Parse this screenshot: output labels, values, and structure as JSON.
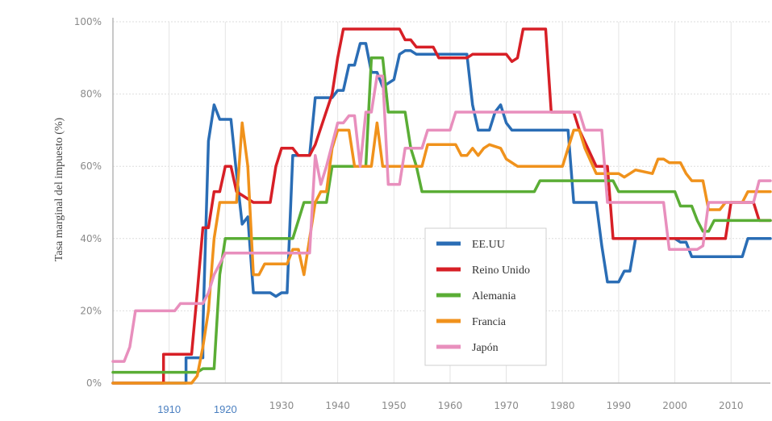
{
  "chart_data": {
    "type": "line",
    "ylabel": "Tasa marginal del impuesto (%)",
    "xlim": [
      1900,
      2017
    ],
    "ylim": [
      0,
      100
    ],
    "yticks": [
      {
        "value": 0,
        "label": "0%"
      },
      {
        "value": 20,
        "label": "20%"
      },
      {
        "value": 40,
        "label": "40%"
      },
      {
        "value": 60,
        "label": "60%"
      },
      {
        "value": 80,
        "label": "80%"
      },
      {
        "value": 100,
        "label": "100%"
      }
    ],
    "xticks": [
      {
        "value": 1910,
        "label": "1910",
        "style": "blue"
      },
      {
        "value": 1920,
        "label": "1920",
        "style": "blue"
      },
      {
        "value": 1930,
        "label": "1930",
        "style": "gray"
      },
      {
        "value": 1940,
        "label": "1940",
        "style": "gray"
      },
      {
        "value": 1950,
        "label": "1950",
        "style": "gray"
      },
      {
        "value": 1960,
        "label": "1960",
        "style": "gray"
      },
      {
        "value": 1970,
        "label": "1970",
        "style": "gray"
      },
      {
        "value": 1980,
        "label": "1980",
        "style": "gray"
      },
      {
        "value": 1990,
        "label": "1990",
        "style": "gray"
      },
      {
        "value": 2000,
        "label": "2000",
        "style": "gray"
      },
      {
        "value": 2010,
        "label": "2010",
        "style": "gray"
      }
    ],
    "grid": true,
    "legend_position": "bottom-center",
    "series": [
      {
        "name": "EE.UU",
        "color": "#2a6db5",
        "points": [
          [
            1900,
            0
          ],
          [
            1913,
            0
          ],
          [
            1913,
            7
          ],
          [
            1916,
            7
          ],
          [
            1916,
            15
          ],
          [
            1917,
            67
          ],
          [
            1918,
            77
          ],
          [
            1919,
            73
          ],
          [
            1921,
            73
          ],
          [
            1922,
            58
          ],
          [
            1923,
            44
          ],
          [
            1924,
            46
          ],
          [
            1925,
            25
          ],
          [
            1928,
            25
          ],
          [
            1929,
            24
          ],
          [
            1930,
            25
          ],
          [
            1931,
            25
          ],
          [
            1932,
            63
          ],
          [
            1935,
            63
          ],
          [
            1936,
            79
          ],
          [
            1939,
            79
          ],
          [
            1940,
            81
          ],
          [
            1941,
            81
          ],
          [
            1942,
            88
          ],
          [
            1943,
            88
          ],
          [
            1944,
            94
          ],
          [
            1945,
            94
          ],
          [
            1946,
            86
          ],
          [
            1947,
            86
          ],
          [
            1948,
            82
          ],
          [
            1950,
            84
          ],
          [
            1951,
            91
          ],
          [
            1952,
            92
          ],
          [
            1953,
            92
          ],
          [
            1954,
            91
          ],
          [
            1963,
            91
          ],
          [
            1964,
            77
          ],
          [
            1965,
            70
          ],
          [
            1967,
            70
          ],
          [
            1968,
            75
          ],
          [
            1969,
            77
          ],
          [
            1970,
            72
          ],
          [
            1971,
            70
          ],
          [
            1981,
            70
          ],
          [
            1982,
            50
          ],
          [
            1986,
            50
          ],
          [
            1987,
            38
          ],
          [
            1988,
            28
          ],
          [
            1990,
            28
          ],
          [
            1991,
            31
          ],
          [
            1992,
            31
          ],
          [
            1993,
            40
          ],
          [
            2000,
            40
          ],
          [
            2001,
            39
          ],
          [
            2002,
            39
          ],
          [
            2003,
            35
          ],
          [
            2012,
            35
          ],
          [
            2013,
            40
          ],
          [
            2017,
            40
          ]
        ]
      },
      {
        "name": "Reino Unido",
        "color": "#d71f26",
        "points": [
          [
            1900,
            0
          ],
          [
            1909,
            0
          ],
          [
            1909,
            8
          ],
          [
            1914,
            8
          ],
          [
            1915,
            25
          ],
          [
            1916,
            43
          ],
          [
            1917,
            43
          ],
          [
            1918,
            53
          ],
          [
            1919,
            53
          ],
          [
            1920,
            60
          ],
          [
            1921,
            60
          ],
          [
            1922,
            53
          ],
          [
            1925,
            50
          ],
          [
            1928,
            50
          ],
          [
            1929,
            60
          ],
          [
            1930,
            65
          ],
          [
            1932,
            65
          ],
          [
            1933,
            63
          ],
          [
            1935,
            63
          ],
          [
            1936,
            66
          ],
          [
            1939,
            80
          ],
          [
            1940,
            90
          ],
          [
            1941,
            98
          ],
          [
            1951,
            98
          ],
          [
            1952,
            95
          ],
          [
            1953,
            95
          ],
          [
            1954,
            93
          ],
          [
            1957,
            93
          ],
          [
            1958,
            90
          ],
          [
            1963,
            90
          ],
          [
            1964,
            91
          ],
          [
            1970,
            91
          ],
          [
            1971,
            89
          ],
          [
            1972,
            90
          ],
          [
            1973,
            98
          ],
          [
            1977,
            98
          ],
          [
            1978,
            75
          ],
          [
            1982,
            75
          ],
          [
            1983,
            70
          ],
          [
            1986,
            60
          ],
          [
            1988,
            60
          ],
          [
            1989,
            40
          ],
          [
            2009,
            40
          ],
          [
            2010,
            50
          ],
          [
            2014,
            50
          ],
          [
            2015,
            45
          ],
          [
            2017,
            45
          ]
        ]
      },
      {
        "name": "Alemania",
        "color": "#5aad35",
        "points": [
          [
            1900,
            3
          ],
          [
            1915,
            3
          ],
          [
            1916,
            4
          ],
          [
            1918,
            4
          ],
          [
            1919,
            30
          ],
          [
            1920,
            40
          ],
          [
            1932,
            40
          ],
          [
            1933,
            45
          ],
          [
            1934,
            50
          ],
          [
            1938,
            50
          ],
          [
            1939,
            60
          ],
          [
            1945,
            60
          ],
          [
            1946,
            90
          ],
          [
            1948,
            90
          ],
          [
            1949,
            75
          ],
          [
            1952,
            75
          ],
          [
            1953,
            65
          ],
          [
            1954,
            60
          ],
          [
            1955,
            53
          ],
          [
            1975,
            53
          ],
          [
            1976,
            56
          ],
          [
            1989,
            56
          ],
          [
            1990,
            53
          ],
          [
            2000,
            53
          ],
          [
            2001,
            49
          ],
          [
            2003,
            49
          ],
          [
            2004,
            45
          ],
          [
            2005,
            42
          ],
          [
            2006,
            42
          ],
          [
            2007,
            45
          ],
          [
            2017,
            45
          ]
        ]
      },
      {
        "name": "Francia",
        "color": "#f0921c",
        "points": [
          [
            1900,
            0
          ],
          [
            1914,
            0
          ],
          [
            1915,
            2
          ],
          [
            1916,
            10
          ],
          [
            1917,
            20
          ],
          [
            1918,
            40
          ],
          [
            1919,
            50
          ],
          [
            1922,
            50
          ],
          [
            1923,
            72
          ],
          [
            1924,
            60
          ],
          [
            1925,
            30
          ],
          [
            1926,
            30
          ],
          [
            1927,
            33
          ],
          [
            1931,
            33
          ],
          [
            1932,
            37
          ],
          [
            1933,
            37
          ],
          [
            1934,
            30
          ],
          [
            1935,
            40
          ],
          [
            1936,
            50
          ],
          [
            1937,
            53
          ],
          [
            1938,
            53
          ],
          [
            1939,
            65
          ],
          [
            1940,
            70
          ],
          [
            1942,
            70
          ],
          [
            1943,
            60
          ],
          [
            1946,
            60
          ],
          [
            1947,
            72
          ],
          [
            1948,
            60
          ],
          [
            1955,
            60
          ],
          [
            1956,
            66
          ],
          [
            1961,
            66
          ],
          [
            1962,
            63
          ],
          [
            1963,
            63
          ],
          [
            1964,
            65
          ],
          [
            1965,
            63
          ],
          [
            1966,
            65
          ],
          [
            1967,
            66
          ],
          [
            1969,
            65
          ],
          [
            1970,
            62
          ],
          [
            1972,
            60
          ],
          [
            1980,
            60
          ],
          [
            1981,
            65
          ],
          [
            1982,
            70
          ],
          [
            1983,
            70
          ],
          [
            1984,
            65
          ],
          [
            1986,
            58
          ],
          [
            1990,
            58
          ],
          [
            1991,
            57
          ],
          [
            1992,
            58
          ],
          [
            1993,
            59
          ],
          [
            1996,
            58
          ],
          [
            1997,
            62
          ],
          [
            1998,
            62
          ],
          [
            1999,
            61
          ],
          [
            2001,
            61
          ],
          [
            2002,
            58
          ],
          [
            2003,
            56
          ],
          [
            2005,
            56
          ],
          [
            2006,
            48
          ],
          [
            2008,
            48
          ],
          [
            2009,
            50
          ],
          [
            2012,
            50
          ],
          [
            2013,
            53
          ],
          [
            2017,
            53
          ]
        ]
      },
      {
        "name": "Japón",
        "color": "#e88fbd",
        "points": [
          [
            1900,
            6
          ],
          [
            1902,
            6
          ],
          [
            1903,
            10
          ],
          [
            1904,
            20
          ],
          [
            1911,
            20
          ],
          [
            1912,
            22
          ],
          [
            1916,
            22
          ],
          [
            1917,
            25
          ],
          [
            1918,
            30
          ],
          [
            1919,
            33
          ],
          [
            1920,
            36
          ],
          [
            1935,
            36
          ],
          [
            1936,
            63
          ],
          [
            1937,
            55
          ],
          [
            1938,
            60
          ],
          [
            1940,
            72
          ],
          [
            1941,
            72
          ],
          [
            1942,
            74
          ],
          [
            1943,
            74
          ],
          [
            1944,
            60
          ],
          [
            1945,
            75
          ],
          [
            1946,
            75
          ],
          [
            1947,
            85
          ],
          [
            1948,
            85
          ],
          [
            1949,
            55
          ],
          [
            1951,
            55
          ],
          [
            1952,
            65
          ],
          [
            1955,
            65
          ],
          [
            1956,
            70
          ],
          [
            1960,
            70
          ],
          [
            1961,
            75
          ],
          [
            1983,
            75
          ],
          [
            1984,
            70
          ],
          [
            1987,
            70
          ],
          [
            1988,
            50
          ],
          [
            1998,
            50
          ],
          [
            1999,
            37
          ],
          [
            2003,
            37
          ],
          [
            2004,
            37
          ],
          [
            2005,
            38
          ],
          [
            2006,
            50
          ],
          [
            2014,
            50
          ],
          [
            2015,
            56
          ],
          [
            2017,
            56
          ]
        ]
      }
    ]
  }
}
